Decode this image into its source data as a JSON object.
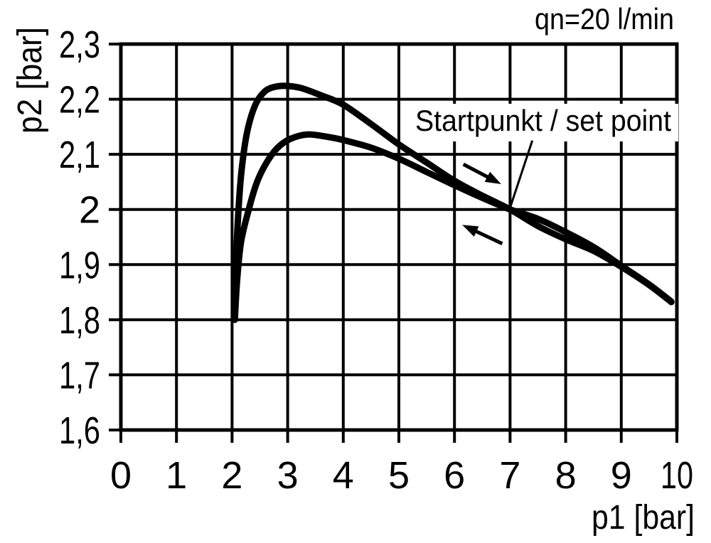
{
  "colors": {
    "foreground": "#000000",
    "background": "#ffffff"
  },
  "chart_data": {
    "type": "line",
    "title": "qn=20 l/min",
    "xlabel": "p1 [bar]",
    "ylabel": "p2 [bar]",
    "xlim": [
      0,
      10
    ],
    "ylim": [
      1.6,
      2.3
    ],
    "grid": true,
    "x_ticks": [
      0,
      1,
      2,
      3,
      4,
      5,
      6,
      7,
      8,
      9,
      10
    ],
    "x_tick_labels": [
      "0",
      "1",
      "2",
      "3",
      "4",
      "5",
      "6",
      "7",
      "8",
      "9",
      "10"
    ],
    "y_ticks": [
      2.3,
      2.2,
      2.1,
      2.0,
      1.9,
      1.8,
      1.7,
      1.6
    ],
    "y_tick_labels": [
      "2,3",
      "2,2",
      "2,1",
      "2",
      "1,9",
      "1,8",
      "1,7",
      "1,6"
    ],
    "line_color": "#000000",
    "set_point": {
      "x": 7,
      "y": 2.0
    },
    "series": [
      {
        "name": "upper-branch",
        "x": [
          2.05,
          2.07,
          2.11,
          2.17,
          2.27,
          2.42,
          2.6,
          2.8,
          3.0,
          3.25,
          3.6,
          4.0,
          4.5,
          5.0,
          5.5,
          6.0,
          6.5,
          7.0,
          7.5,
          8.0,
          8.5,
          9.0,
          9.5,
          9.9
        ],
        "y": [
          1.8,
          1.9,
          1.99,
          2.07,
          2.14,
          2.19,
          2.215,
          2.223,
          2.224,
          2.22,
          2.207,
          2.19,
          2.155,
          2.118,
          2.085,
          2.052,
          2.025,
          2.0,
          1.97,
          1.946,
          1.925,
          1.896,
          1.863,
          1.832
        ]
      },
      {
        "name": "lower-branch",
        "x": [
          2.05,
          2.09,
          2.16,
          2.3,
          2.45,
          2.62,
          2.82,
          3.05,
          3.35,
          3.7,
          4.0,
          4.5,
          5.0,
          5.5,
          6.0,
          6.5,
          7.0,
          7.5,
          8.0,
          8.5,
          9.0,
          9.5,
          9.9
        ],
        "y": [
          1.8,
          1.87,
          1.94,
          2.0,
          2.05,
          2.085,
          2.112,
          2.128,
          2.136,
          2.132,
          2.126,
          2.112,
          2.092,
          2.068,
          2.044,
          2.021,
          2.0,
          1.983,
          1.959,
          1.932,
          1.898,
          1.864,
          1.833
        ]
      }
    ],
    "annotations": [
      {
        "text": "Startpunkt / set point",
        "leader_from": {
          "x": 7.4,
          "y": 2.125
        },
        "leader_to": {
          "x": 7.0,
          "y": 2.003
        }
      }
    ],
    "direction_arrows": [
      {
        "name": "right",
        "from": {
          "x": 6.16,
          "y": 2.082
        },
        "to": {
          "x": 6.84,
          "y": 2.046
        }
      },
      {
        "name": "left",
        "from": {
          "x": 6.86,
          "y": 1.938
        },
        "to": {
          "x": 6.14,
          "y": 1.972
        }
      }
    ]
  }
}
